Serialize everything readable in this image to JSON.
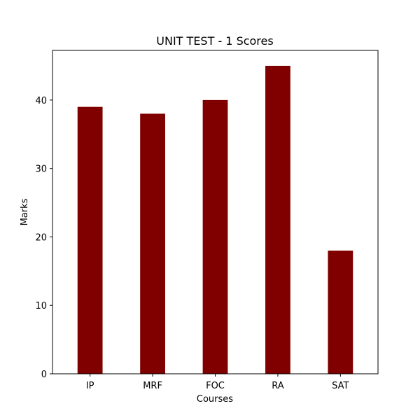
{
  "chart_data": {
    "type": "bar",
    "title": "UNIT TEST - 1 Scores",
    "xlabel": "Courses",
    "ylabel": "Marks",
    "categories": [
      "IP",
      "MRF",
      "FOC",
      "RA",
      "SAT"
    ],
    "values": [
      39,
      38,
      40,
      45,
      18
    ],
    "ylim": [
      0,
      47.25
    ],
    "yticks": [
      0,
      10,
      20,
      30,
      40
    ],
    "bar_color": "#800000",
    "grid": false
  }
}
